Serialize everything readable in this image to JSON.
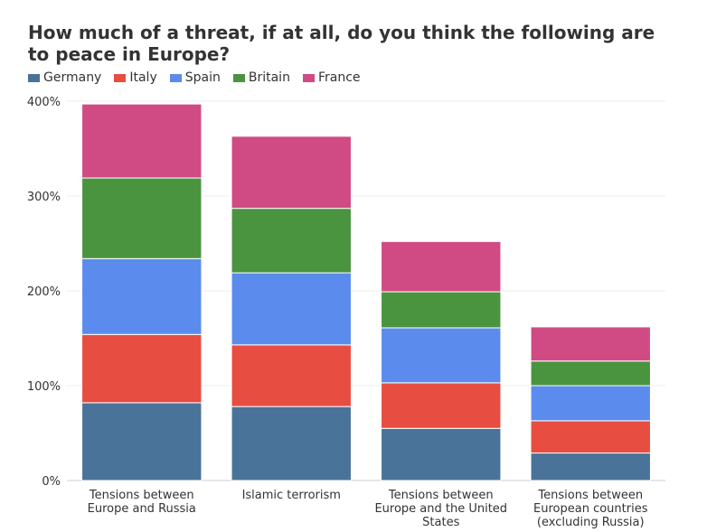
{
  "chart_data": {
    "type": "bar",
    "stacked": true,
    "title": "How much of a threat, if at all, do you think the following are to peace in Europe?",
    "categories": [
      [
        "Tensions between",
        "Europe and Russia"
      ],
      [
        "Islamic terrorism"
      ],
      [
        "Tensions between",
        "Europe and the United",
        "States"
      ],
      [
        "Tensions between",
        "European countries",
        "(excluding Russia)"
      ]
    ],
    "series": [
      {
        "name": "Germany",
        "color": "#4a7399",
        "values": [
          82,
          78,
          55,
          29
        ]
      },
      {
        "name": "Italy",
        "color": "#e84d42",
        "values": [
          72,
          65,
          48,
          34
        ]
      },
      {
        "name": "Spain",
        "color": "#5b8ced",
        "values": [
          80,
          76,
          58,
          37
        ]
      },
      {
        "name": "Britain",
        "color": "#4a9440",
        "values": [
          85,
          68,
          38,
          26
        ]
      },
      {
        "name": "France",
        "color": "#d04b84",
        "values": [
          78,
          76,
          53,
          36
        ]
      }
    ],
    "ylim": [
      0,
      400
    ],
    "yticks": [
      0,
      100,
      200,
      300,
      400
    ],
    "ytick_labels": [
      "0%",
      "100%",
      "200%",
      "300%",
      "400%"
    ],
    "xlabel": "",
    "ylabel": "",
    "grid": true,
    "legend_position": "top-left"
  }
}
